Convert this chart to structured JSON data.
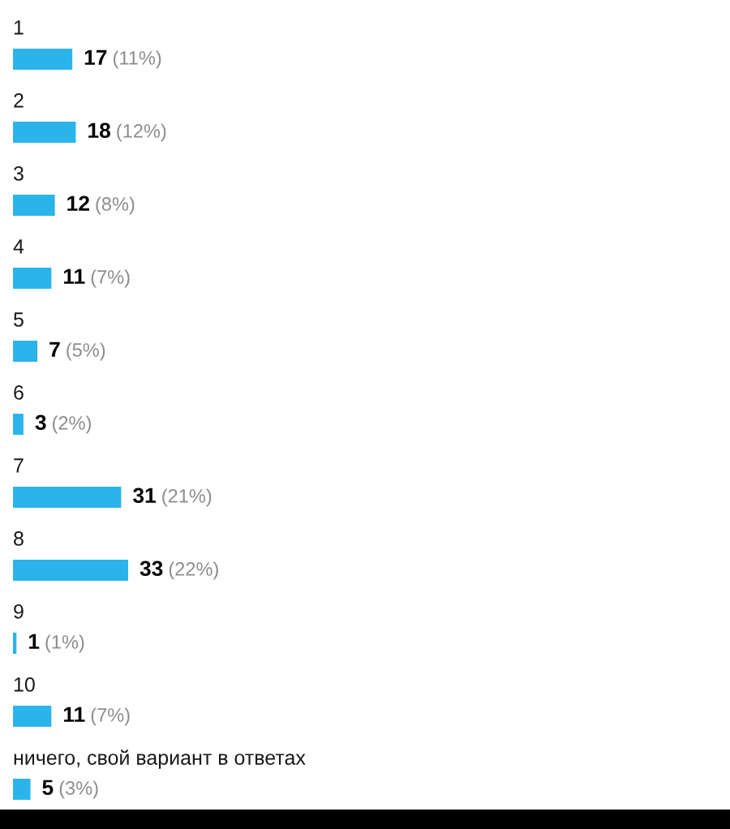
{
  "chart_data": {
    "type": "bar",
    "orientation": "horizontal",
    "categories": [
      "1",
      "2",
      "3",
      "4",
      "5",
      "6",
      "7",
      "8",
      "9",
      "10",
      "ничего, свой вариант в ответах"
    ],
    "values": [
      17,
      18,
      12,
      11,
      7,
      3,
      31,
      33,
      1,
      11,
      5
    ],
    "color": "#2bb4ea",
    "value_labels": [
      "17 (11%)",
      "18 (12%)",
      "12 (8%)",
      "11 (7%)",
      "7 (5%)",
      "3 (2%)",
      "31 (21%)",
      "33 (22%)",
      "1 (1%)",
      "11 (7%)",
      "5 (3%)"
    ]
  }
}
